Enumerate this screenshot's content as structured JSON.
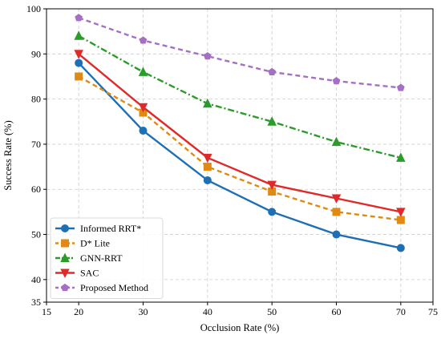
{
  "chart_data": {
    "type": "line",
    "title": "",
    "xlabel": "Occlusion Rate (%)",
    "ylabel": "Success Rate (%)",
    "xlim": [
      15,
      75
    ],
    "ylim": [
      35,
      100
    ],
    "x_ticks": [
      15,
      20,
      30,
      40,
      50,
      60,
      70,
      75
    ],
    "y_ticks": [
      35,
      40,
      50,
      60,
      70,
      80,
      90,
      100
    ],
    "grid": true,
    "legend_position": "bottom-left",
    "x": [
      20,
      30,
      40,
      50,
      60,
      70
    ],
    "series": [
      {
        "name": "Informed RRT*",
        "values": [
          88,
          73,
          62,
          55,
          50,
          47
        ],
        "color": "#1f6fb5",
        "marker": "circle",
        "line_style": "solid"
      },
      {
        "name": "D* Lite",
        "values": [
          85,
          77,
          65,
          59.5,
          55,
          53.2
        ],
        "color": "#e08a14",
        "marker": "square",
        "line_style": "dashed"
      },
      {
        "name": "GNN-RRT",
        "values": [
          94,
          86,
          79,
          75,
          70.5,
          67
        ],
        "color": "#2a9c2a",
        "marker": "triangle-up",
        "line_style": "dashdot"
      },
      {
        "name": "SAC",
        "values": [
          90,
          78.2,
          67,
          61,
          58,
          55
        ],
        "color": "#e02a2a",
        "marker": "triangle-down",
        "line_style": "solid"
      },
      {
        "name": "Proposed Method",
        "values": [
          98,
          93,
          89.5,
          86,
          84,
          82.5
        ],
        "color": "#a46fc4",
        "marker": "pentagon",
        "line_style": "dashed"
      }
    ]
  }
}
